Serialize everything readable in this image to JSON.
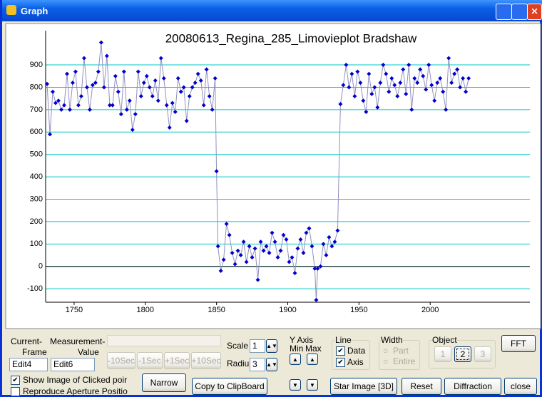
{
  "window": {
    "title": "Graph"
  },
  "chart_data": {
    "type": "line",
    "title": "20080613_Regina_285_Limovieplot Bradshaw",
    "color": "#0000cc",
    "line_color": "#9090c0",
    "x": [
      1731,
      1733,
      1735,
      1737,
      1739,
      1741,
      1743,
      1745,
      1747,
      1749,
      1751,
      1753,
      1755,
      1757,
      1759,
      1761,
      1763,
      1765,
      1767,
      1769,
      1771,
      1773,
      1775,
      1777,
      1779,
      1781,
      1783,
      1785,
      1787,
      1789,
      1791,
      1793,
      1795,
      1797,
      1799,
      1801,
      1803,
      1805,
      1807,
      1809,
      1811,
      1813,
      1815,
      1817,
      1819,
      1821,
      1823,
      1825,
      1827,
      1829,
      1831,
      1833,
      1835,
      1837,
      1839,
      1841,
      1843,
      1845,
      1847,
      1849,
      1850,
      1851,
      1853,
      1855,
      1857,
      1859,
      1861,
      1863,
      1865,
      1867,
      1869,
      1871,
      1873,
      1875,
      1877,
      1879,
      1881,
      1883,
      1885,
      1887,
      1889,
      1891,
      1893,
      1895,
      1897,
      1899,
      1901,
      1903,
      1905,
      1907,
      1909,
      1911,
      1913,
      1915,
      1917,
      1919,
      1920,
      1921,
      1923,
      1925,
      1927,
      1929,
      1931,
      1933,
      1935,
      1937,
      1939,
      1941,
      1943,
      1945,
      1947,
      1949,
      1951,
      1953,
      1955,
      1957,
      1959,
      1961,
      1963,
      1965,
      1967,
      1969,
      1971,
      1973,
      1975,
      1977,
      1979,
      1981,
      1983,
      1985,
      1987,
      1989,
      1991,
      1993,
      1995,
      1997,
      1999,
      2001,
      2003,
      2005,
      2007,
      2009,
      2011,
      2013,
      2015,
      2017,
      2019,
      2021,
      2023,
      2025,
      2027
    ],
    "values": [
      815,
      590,
      780,
      730,
      740,
      700,
      720,
      860,
      700,
      820,
      870,
      720,
      760,
      930,
      800,
      700,
      810,
      820,
      870,
      1000,
      800,
      940,
      720,
      720,
      850,
      780,
      680,
      870,
      700,
      740,
      610,
      680,
      870,
      760,
      820,
      850,
      800,
      760,
      830,
      740,
      930,
      840,
      720,
      620,
      730,
      690,
      840,
      780,
      800,
      650,
      760,
      800,
      820,
      860,
      830,
      720,
      880,
      760,
      700,
      840,
      425,
      90,
      -20,
      30,
      190,
      140,
      60,
      10,
      70,
      50,
      110,
      20,
      90,
      40,
      80,
      -60,
      110,
      70,
      90,
      60,
      150,
      110,
      40,
      70,
      140,
      120,
      20,
      40,
      -30,
      80,
      120,
      60,
      150,
      170,
      90,
      -10,
      -150,
      -10,
      0,
      100,
      50,
      130,
      90,
      110,
      160,
      725,
      810,
      900,
      800,
      860,
      760,
      870,
      820,
      740,
      690,
      860,
      770,
      800,
      710,
      820,
      900,
      860,
      780,
      840,
      810,
      760,
      820,
      880,
      770,
      900,
      700,
      840,
      820,
      880,
      850,
      790,
      900,
      810,
      740,
      820,
      840,
      780,
      700,
      930,
      820,
      860,
      880,
      800,
      840,
      780,
      840
    ],
    "xlim": [
      1730,
      2070
    ],
    "xticks": [
      1750,
      1800,
      1850,
      1900,
      1950,
      2000
    ],
    "ylim": [
      -160,
      1053
    ],
    "yticks": [
      -100,
      0,
      100,
      200,
      300,
      400,
      500,
      600,
      700,
      800,
      900
    ],
    "grid": true,
    "grid_color": "#00c8c8"
  },
  "controls": {
    "current": "Current-",
    "frame": "Frame",
    "measurement": "Measurement-",
    "value": "Value",
    "edit_frame": "Edit4",
    "edit_value": "Edit6",
    "minus10": "-10Sec",
    "minus1": "-1Sec",
    "plus1": "+1Sec",
    "plus10": "+10Sec",
    "scale_label": "Scale",
    "scale_value": "1",
    "radius_label": "Radiu",
    "radius_value": "3",
    "y_axis": "Y Axis",
    "min": "Min",
    "max": "Max",
    "line": "Line",
    "line_data": "Data",
    "line_axis": "Axis",
    "width": "Width",
    "width_part": "Part",
    "width_entire": "Entire",
    "object": "Object",
    "object_1": "1",
    "object_2": "2",
    "object_3": "3",
    "fft": "FFT",
    "show_image": "Show Image of Clicked poir",
    "reproduce": "Reproduce Aperture Positio",
    "narrow": "Narrow",
    "copy": "Copy to ClipBoard",
    "star_image": "Star Image [3D]",
    "reset": "Reset",
    "diffraction": "Diffraction",
    "close": "close"
  }
}
